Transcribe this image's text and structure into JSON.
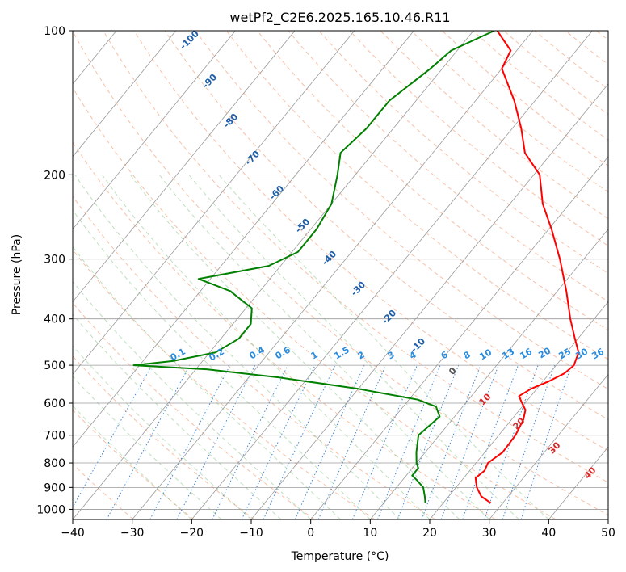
{
  "chart_data": {
    "type": "line",
    "title": "wetPf2_C2E6.2025.165.10.46.R11",
    "xlabel": "Temperature (°C)",
    "ylabel": "Pressure (hPa)",
    "xlim": [
      -40,
      50
    ],
    "ylim": [
      1050,
      100
    ],
    "y_scale": "log",
    "grid": true,
    "x_ticks": [
      -40,
      -30,
      -20,
      -10,
      0,
      10,
      20,
      30,
      40,
      50
    ],
    "y_ticks": [
      100,
      200,
      300,
      400,
      500,
      600,
      700,
      800,
      900,
      1000
    ],
    "x_tick_labels": [
      "−40",
      "−30",
      "−20",
      "−10",
      "0",
      "10",
      "20",
      "30",
      "40",
      "50"
    ],
    "y_tick_labels": [
      "100",
      "200",
      "300",
      "400",
      "500",
      "600",
      "700",
      "800",
      "900",
      "1000"
    ],
    "series": [
      {
        "color": "#ff0000",
        "points": [
          {
            "p": 970,
            "t": 28.0
          },
          {
            "p": 940,
            "t": 25.5
          },
          {
            "p": 900,
            "t": 23.5
          },
          {
            "p": 860,
            "t": 22.0
          },
          {
            "p": 830,
            "t": 22.5
          },
          {
            "p": 800,
            "t": 22.0
          },
          {
            "p": 760,
            "t": 23.0
          },
          {
            "p": 700,
            "t": 22.8
          },
          {
            "p": 650,
            "t": 22.0
          },
          {
            "p": 620,
            "t": 21.0
          },
          {
            "p": 600,
            "t": 19.5
          },
          {
            "p": 580,
            "t": 18.0
          },
          {
            "p": 560,
            "t": 19.0
          },
          {
            "p": 540,
            "t": 21.0
          },
          {
            "p": 520,
            "t": 22.5
          },
          {
            "p": 500,
            "t": 23.0
          },
          {
            "p": 470,
            "t": 22.0
          },
          {
            "p": 440,
            "t": 19.5
          },
          {
            "p": 400,
            "t": 16.0
          },
          {
            "p": 350,
            "t": 11.5
          },
          {
            "p": 300,
            "t": 6.0
          },
          {
            "p": 260,
            "t": 0.5
          },
          {
            "p": 230,
            "t": -4.5
          },
          {
            "p": 200,
            "t": -9.0
          },
          {
            "p": 180,
            "t": -14.5
          },
          {
            "p": 160,
            "t": -18.5
          },
          {
            "p": 140,
            "t": -23.5
          },
          {
            "p": 120,
            "t": -30.0
          },
          {
            "p": 110,
            "t": -31.0
          },
          {
            "p": 100,
            "t": -36.0
          }
        ]
      },
      {
        "color": "#008000",
        "points": [
          {
            "p": 970,
            "t": 17.0
          },
          {
            "p": 940,
            "t": 16.0
          },
          {
            "p": 900,
            "t": 14.5
          },
          {
            "p": 870,
            "t": 12.5
          },
          {
            "p": 850,
            "t": 11.0
          },
          {
            "p": 820,
            "t": 11.0
          },
          {
            "p": 800,
            "t": 10.0
          },
          {
            "p": 760,
            "t": 8.5
          },
          {
            "p": 700,
            "t": 6.5
          },
          {
            "p": 670,
            "t": 7.0
          },
          {
            "p": 640,
            "t": 7.5
          },
          {
            "p": 610,
            "t": 5.5
          },
          {
            "p": 590,
            "t": 1.5
          },
          {
            "p": 560,
            "t": -10.0
          },
          {
            "p": 530,
            "t": -25.0
          },
          {
            "p": 510,
            "t": -38.0
          },
          {
            "p": 500,
            "t": -51.0
          },
          {
            "p": 490,
            "t": -45.0
          },
          {
            "p": 470,
            "t": -39.0
          },
          {
            "p": 440,
            "t": -37.0
          },
          {
            "p": 410,
            "t": -37.0
          },
          {
            "p": 380,
            "t": -39.0
          },
          {
            "p": 350,
            "t": -45.0
          },
          {
            "p": 330,
            "t": -52.0
          },
          {
            "p": 310,
            "t": -42.0
          },
          {
            "p": 290,
            "t": -39.0
          },
          {
            "p": 260,
            "t": -39.0
          },
          {
            "p": 230,
            "t": -40.0
          },
          {
            "p": 200,
            "t": -43.0
          },
          {
            "p": 180,
            "t": -45.5
          },
          {
            "p": 160,
            "t": -44.5
          },
          {
            "p": 140,
            "t": -44.5
          },
          {
            "p": 120,
            "t": -42.0
          },
          {
            "p": 110,
            "t": -41.0
          },
          {
            "p": 100,
            "t": -36.5
          }
        ]
      }
    ],
    "dry_adiabat_labels": [
      "-100",
      "-90",
      "-80",
      "-70",
      "-60",
      "-50",
      "-40",
      "-30",
      "-20",
      "-10",
      "0",
      "10",
      "20",
      "30",
      "40"
    ],
    "mixing_ratio_labels": [
      "0.1",
      "0.2",
      "0.4",
      "0.6",
      "1",
      "1.5",
      "2",
      "3",
      "4",
      "6",
      "8",
      "10",
      "13",
      "16",
      "20",
      "25",
      "30",
      "36"
    ]
  }
}
